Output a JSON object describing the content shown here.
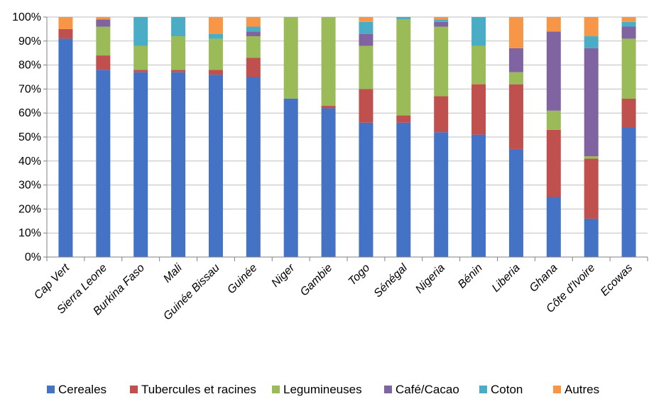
{
  "chart_data": {
    "type": "bar",
    "stacked": true,
    "percent": true,
    "categories": [
      "Cap Vert",
      "Sierra Leone",
      "Burkina Faso",
      "Mali",
      "Guinée Bissau",
      "Guinée",
      "Niger",
      "Gambie",
      "Togo",
      "Sénégal",
      "Nigeria",
      "Bénin",
      "Liberia",
      "Ghana",
      "Côte d'Ivoire",
      "Ecowas"
    ],
    "yticks": [
      "0%",
      "10%",
      "20%",
      "30%",
      "40%",
      "50%",
      "60%",
      "70%",
      "80%",
      "90%",
      "100%"
    ],
    "ylim": [
      0,
      100
    ],
    "legend_position": "bottom",
    "series": [
      {
        "name": "Cereales",
        "color": "#4472C4",
        "values": [
          91,
          78,
          77,
          77,
          76,
          75,
          66,
          62,
          56,
          56,
          52,
          51,
          45,
          25,
          16,
          54
        ]
      },
      {
        "name": "Tubercules et racines",
        "color": "#C0504D",
        "values": [
          4,
          6,
          1,
          1,
          2,
          8,
          0,
          1,
          14,
          3,
          15,
          21,
          27,
          28,
          25,
          12
        ]
      },
      {
        "name": "Legumineuses",
        "color": "#9BBB59",
        "values": [
          0,
          12,
          10,
          14,
          13,
          9,
          34,
          37,
          18,
          40,
          29,
          16,
          5,
          8,
          1,
          25
        ]
      },
      {
        "name": "Café/Cacao",
        "color": "#8064A2",
        "values": [
          0,
          3,
          0,
          0,
          0,
          2,
          0,
          0,
          5,
          0,
          2,
          0,
          10,
          33,
          45,
          5
        ]
      },
      {
        "name": "Coton",
        "color": "#4BACC6",
        "values": [
          0,
          0,
          12,
          8,
          2,
          2,
          0,
          0,
          5,
          1,
          1,
          12,
          0,
          0,
          5,
          2
        ]
      },
      {
        "name": "Autres",
        "color": "#F79646",
        "values": [
          5,
          1,
          0,
          0,
          7,
          4,
          0,
          0,
          2,
          0,
          1,
          0,
          13,
          6,
          8,
          2
        ]
      }
    ]
  }
}
